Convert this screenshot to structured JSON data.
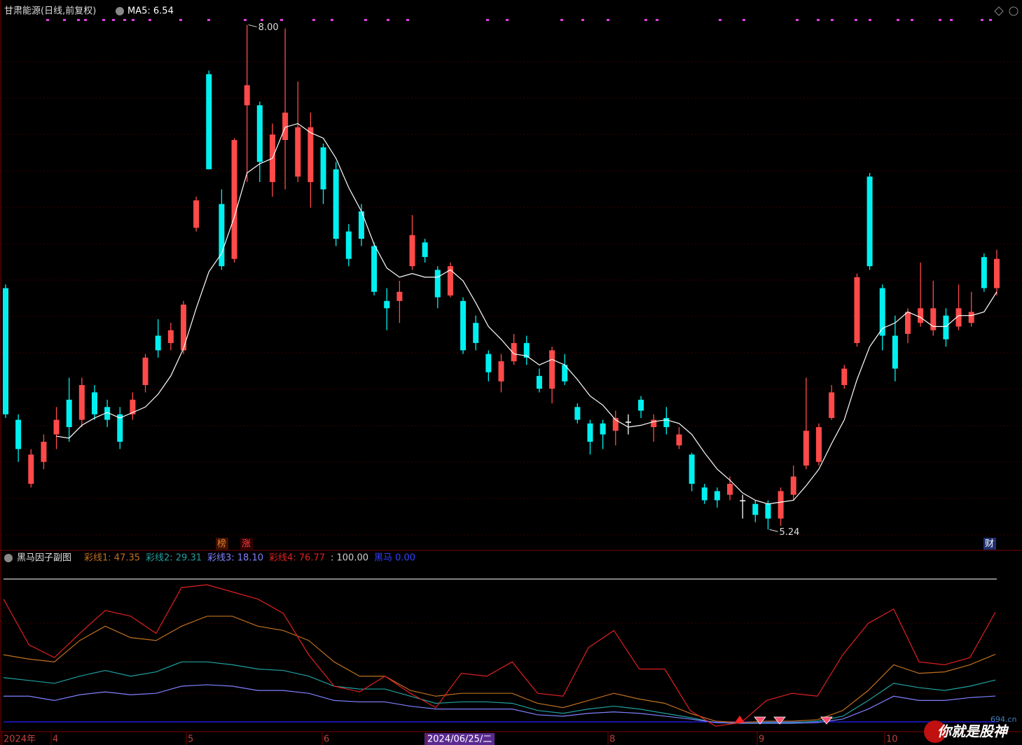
{
  "chart_data": [
    {
      "type": "candlestick",
      "title": "甘肃能源(日线,前复权)",
      "up_color": "#ff4a4a",
      "down_color": "#00f0f0",
      "flat_color": "#ffffff",
      "ylim": [
        5.13,
        8.04
      ],
      "candles": [
        [
          6.56,
          5.87,
          6.58,
          5.85
        ],
        [
          5.84,
          5.68,
          5.87,
          5.61
        ],
        [
          5.49,
          5.65,
          5.68,
          5.47
        ],
        [
          5.61,
          5.72,
          5.76,
          5.57
        ],
        [
          5.76,
          5.84,
          5.91,
          5.68
        ],
        [
          5.95,
          5.8,
          6.07,
          5.72
        ],
        [
          5.84,
          6.03,
          6.07,
          5.8
        ],
        [
          5.99,
          5.87,
          6.03,
          5.84
        ],
        [
          5.91,
          5.84,
          5.95,
          5.8
        ],
        [
          5.87,
          5.72,
          5.91,
          5.68
        ],
        [
          5.87,
          5.95,
          5.99,
          5.84
        ],
        [
          6.03,
          6.18,
          6.2,
          5.99
        ],
        [
          6.3,
          6.22,
          6.39,
          6.18
        ],
        [
          6.26,
          6.33,
          6.37,
          6.22
        ],
        [
          6.22,
          6.47,
          6.49,
          6.2
        ],
        [
          6.89,
          7.04,
          7.06,
          6.87
        ],
        [
          7.73,
          7.21,
          7.75,
          7.21
        ],
        [
          7.02,
          6.68,
          7.1,
          6.66
        ],
        [
          6.72,
          7.37,
          7.38,
          6.7
        ],
        [
          7.56,
          7.67,
          8.0,
          7.14
        ],
        [
          7.56,
          7.25,
          7.58,
          7.14
        ],
        [
          7.14,
          7.4,
          7.46,
          7.06
        ],
        [
          7.37,
          7.52,
          7.98,
          7.1
        ],
        [
          7.17,
          7.44,
          7.69,
          7.14
        ],
        [
          7.14,
          7.44,
          7.52,
          7.0
        ],
        [
          7.33,
          7.1,
          7.35,
          7.02
        ],
        [
          7.21,
          6.83,
          7.25,
          6.79
        ],
        [
          6.87,
          6.72,
          6.91,
          6.68
        ],
        [
          6.98,
          6.83,
          7.02,
          6.79
        ],
        [
          6.79,
          6.54,
          6.81,
          6.52
        ],
        [
          6.49,
          6.45,
          6.56,
          6.33
        ],
        [
          6.49,
          6.54,
          6.6,
          6.37
        ],
        [
          6.68,
          6.85,
          6.96,
          6.66
        ],
        [
          6.81,
          6.73,
          6.83,
          6.7
        ],
        [
          6.66,
          6.51,
          6.68,
          6.45
        ],
        [
          6.52,
          6.68,
          6.7,
          6.51
        ],
        [
          6.49,
          6.22,
          6.51,
          6.2
        ],
        [
          6.37,
          6.26,
          6.41,
          6.22
        ],
        [
          6.2,
          6.1,
          6.22,
          6.05
        ],
        [
          6.05,
          6.16,
          6.2,
          5.99
        ],
        [
          6.16,
          6.26,
          6.31,
          6.14
        ],
        [
          6.26,
          6.18,
          6.3,
          6.14
        ],
        [
          6.08,
          6.01,
          6.12,
          5.99
        ],
        [
          6.01,
          6.22,
          6.24,
          5.93
        ],
        [
          6.14,
          6.05,
          6.2,
          6.03
        ],
        [
          5.91,
          5.84,
          5.93,
          5.82
        ],
        [
          5.82,
          5.72,
          5.84,
          5.65
        ],
        [
          5.82,
          5.76,
          5.84,
          5.68
        ],
        [
          5.78,
          5.85,
          5.89,
          5.7
        ],
        [
          5.83,
          5.83,
          5.87,
          5.76
        ],
        [
          5.95,
          5.89,
          5.97,
          5.85
        ],
        [
          5.8,
          5.84,
          5.87,
          5.72
        ],
        [
          5.85,
          5.8,
          5.91,
          5.76
        ],
        [
          5.7,
          5.76,
          5.8,
          5.68
        ],
        [
          5.65,
          5.49,
          5.66,
          5.45
        ],
        [
          5.47,
          5.4,
          5.49,
          5.38
        ],
        [
          5.45,
          5.4,
          5.47,
          5.36
        ],
        [
          5.43,
          5.49,
          5.53,
          5.4
        ],
        [
          5.4,
          5.4,
          5.43,
          5.3
        ],
        [
          5.38,
          5.32,
          5.4,
          5.28
        ],
        [
          5.38,
          5.3,
          5.4,
          5.24
        ],
        [
          5.3,
          5.45,
          5.47,
          5.26
        ],
        [
          5.43,
          5.53,
          5.59,
          5.4
        ],
        [
          5.59,
          5.78,
          6.07,
          5.57
        ],
        [
          5.61,
          5.8,
          5.82,
          5.59
        ],
        [
          5.85,
          5.99,
          6.03,
          5.84
        ],
        [
          6.03,
          6.12,
          6.14,
          6.01
        ],
        [
          6.26,
          6.62,
          6.64,
          6.24
        ],
        [
          7.17,
          6.68,
          7.19,
          6.66
        ],
        [
          6.56,
          6.3,
          6.58,
          6.22
        ],
        [
          6.3,
          6.12,
          6.41,
          6.05
        ],
        [
          6.31,
          6.43,
          6.45,
          6.26
        ],
        [
          6.37,
          6.45,
          6.7,
          6.35
        ],
        [
          6.33,
          6.45,
          6.6,
          6.3
        ],
        [
          6.41,
          6.28,
          6.45,
          6.24
        ],
        [
          6.35,
          6.45,
          6.58,
          6.33
        ],
        [
          6.37,
          6.43,
          6.54,
          6.35
        ],
        [
          6.73,
          6.56,
          6.75,
          6.54
        ],
        [
          6.56,
          6.72,
          6.77,
          6.52
        ]
      ],
      "ma5": {
        "label": "MA5: 6.54",
        "color": "#ffffff",
        "values": [
          null,
          null,
          null,
          null,
          5.75,
          5.74,
          5.81,
          5.85,
          5.88,
          5.85,
          5.88,
          5.91,
          5.98,
          6.08,
          6.23,
          6.45,
          6.65,
          6.75,
          6.95,
          7.19,
          7.24,
          7.27,
          7.44,
          7.46,
          7.41,
          7.38,
          7.27,
          7.11,
          6.98,
          6.8,
          6.67,
          6.62,
          6.64,
          6.62,
          6.62,
          6.66,
          6.6,
          6.48,
          6.35,
          6.28,
          6.2,
          6.19,
          6.14,
          6.17,
          6.14,
          6.06,
          5.97,
          5.92,
          5.84,
          5.8,
          5.81,
          5.83,
          5.84,
          5.82,
          5.76,
          5.66,
          5.57,
          5.51,
          5.44,
          5.4,
          5.38,
          5.39,
          5.4,
          5.48,
          5.57,
          5.71,
          5.84,
          6.06,
          6.24,
          6.34,
          6.37,
          6.43,
          6.4,
          6.35,
          6.35,
          6.41,
          6.41,
          6.43,
          6.54
        ]
      },
      "annotations": [
        {
          "text": "8.00",
          "index": 19,
          "value": 8.0
        },
        {
          "text": "5.24",
          "index": 60,
          "value": 5.24
        }
      ],
      "markers": [
        "榜",
        "涨",
        "财"
      ],
      "x_labels": [
        "2024年",
        "4",
        "5",
        "6",
        "2024/06/25/二",
        "8",
        "9",
        "10"
      ]
    },
    {
      "type": "line",
      "title": "黑马因子副图",
      "ylim": [
        0,
        100
      ],
      "series": [
        {
          "name": "彩线1: 47.35",
          "color": "#c07020",
          "values": [
            47,
            44,
            42,
            57,
            67,
            59,
            57,
            67,
            74,
            74,
            67,
            64,
            57,
            42,
            32,
            32,
            22,
            18,
            20,
            20,
            20,
            13,
            10,
            15,
            20,
            16,
            13,
            6,
            0.5,
            -0.5,
            0.5,
            0.5,
            1.5,
            8,
            22,
            40,
            34,
            35,
            40,
            47.35
          ]
        },
        {
          "name": "彩线2: 29.31",
          "color": "#20a0a0",
          "values": [
            31,
            29,
            27,
            32,
            36,
            32,
            35,
            42,
            42,
            40,
            37,
            36,
            32,
            25,
            23,
            23,
            18,
            13,
            14,
            14,
            13,
            8,
            6,
            9,
            11,
            9,
            6,
            3,
            -0.5,
            -1,
            -0.5,
            -0.5,
            0.5,
            4,
            15,
            27,
            24,
            22,
            25,
            29.31
          ]
        },
        {
          "name": "彩线3: 18.10",
          "color": "#8080ff",
          "values": [
            18,
            18,
            15,
            19,
            21,
            19,
            20,
            25,
            26,
            25,
            22,
            22,
            20,
            15,
            14,
            14,
            11,
            9,
            9,
            9,
            9,
            5,
            4,
            6,
            7,
            6,
            4,
            2,
            -0.5,
            -1,
            -1,
            -1,
            -0.5,
            2,
            9,
            18,
            15,
            15,
            17,
            18.1
          ]
        },
        {
          "name": "彩线4: 76.77",
          "color": "#e02020",
          "values": [
            86,
            54,
            45,
            62,
            78,
            74,
            62,
            94,
            96,
            91,
            86,
            76,
            47,
            25,
            21,
            32,
            20,
            10,
            34,
            32,
            42,
            20,
            18,
            52,
            64,
            37,
            37,
            8,
            -3,
            -0.5,
            15,
            20,
            18,
            47,
            69,
            79,
            42,
            40,
            45,
            76.77
          ]
        }
      ],
      "lines": [
        {
          "label": ": 100.00",
          "value": 100,
          "color": "#d0d0d0"
        },
        {
          "label": "黑马 0.00",
          "value": 0,
          "color": "#2020ff"
        }
      ],
      "watermark": [
        "694.cn",
        "你就是股神"
      ]
    }
  ]
}
